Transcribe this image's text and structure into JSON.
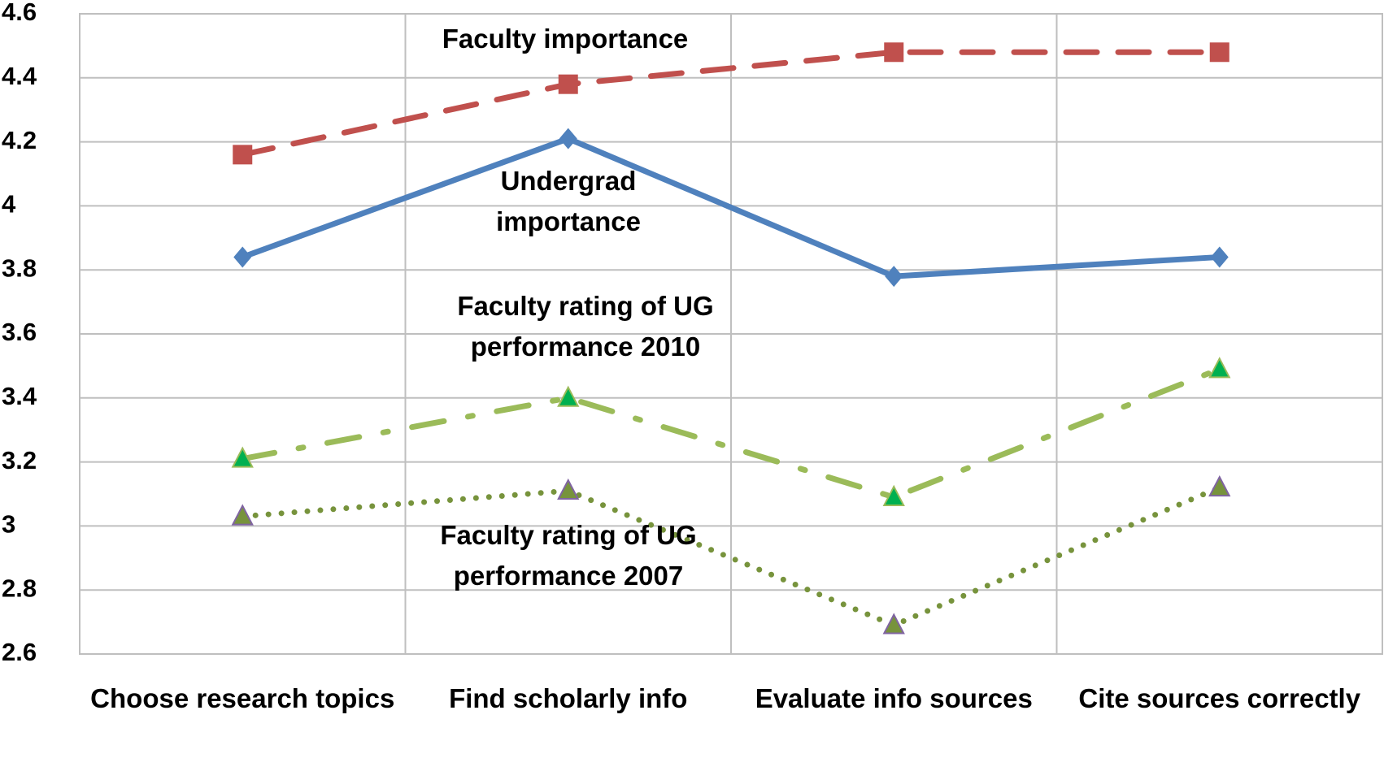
{
  "chart_data": {
    "type": "line",
    "categories": [
      "Choose research topics",
      "Find scholarly info",
      "Evaluate info sources",
      "Cite sources correctly"
    ],
    "series": [
      {
        "name": "Faculty importance",
        "color": "#c0504d",
        "dash": "dashed",
        "marker": "square",
        "values": [
          4.16,
          4.38,
          4.48,
          4.48
        ]
      },
      {
        "name": "Undergrad importance",
        "color": "#4f81bd",
        "dash": "solid",
        "marker": "diamond",
        "values": [
          3.84,
          4.21,
          3.78,
          3.84
        ]
      },
      {
        "name": "Faculty rating of UG performance 2010",
        "color": "#9bbb59",
        "dash": "dashdot",
        "marker": "triangle",
        "marker_color": "#00b050",
        "values": [
          3.21,
          3.4,
          3.09,
          3.49
        ]
      },
      {
        "name": "Faculty rating of UG performance 2007",
        "color": "#77933c",
        "dash": "dotted",
        "marker": "triangle",
        "marker_color": "#77933c",
        "values": [
          3.03,
          3.11,
          2.69,
          3.12
        ]
      }
    ],
    "ylim": [
      2.6,
      4.6
    ],
    "yticks": [
      2.6,
      2.8,
      3,
      3.2,
      3.4,
      3.6,
      3.8,
      4,
      4.2,
      4.4,
      4.6
    ],
    "grid": true
  }
}
